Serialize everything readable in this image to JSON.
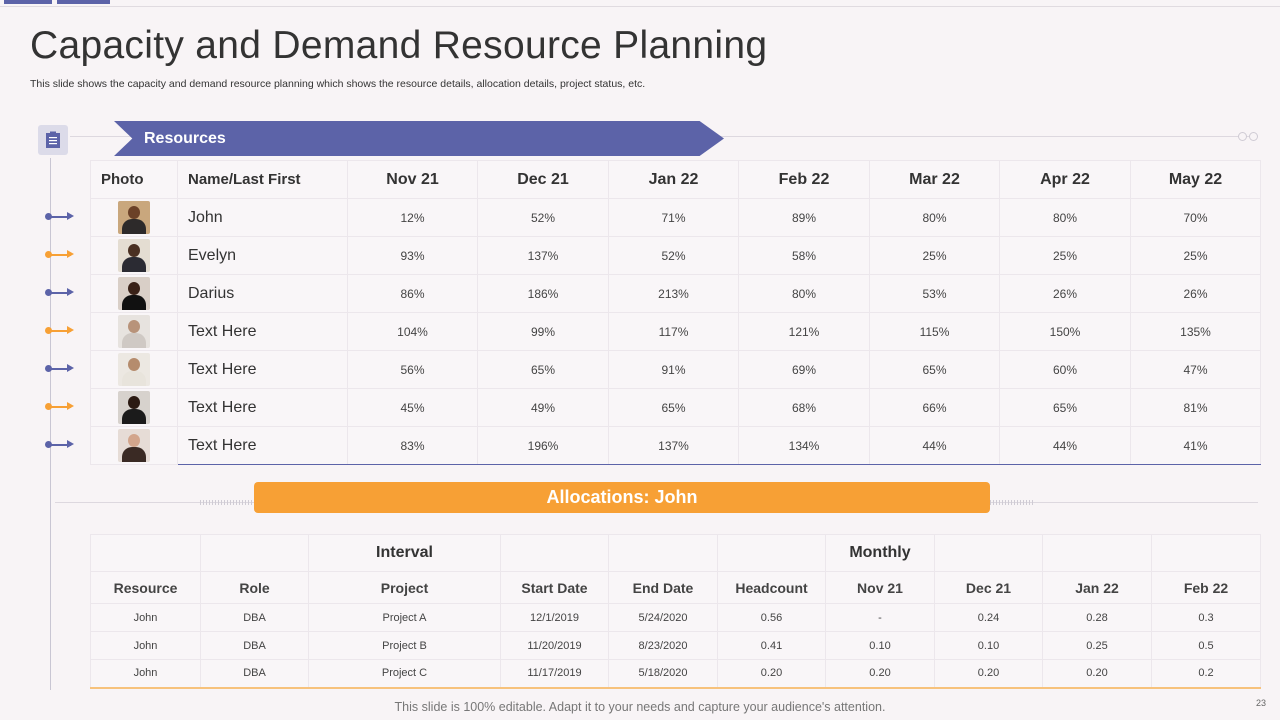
{
  "title": "Capacity and Demand Resource Planning",
  "subtitle": "This slide shows the capacity and demand resource planning which shows the resource details, allocation details, project status, etc.",
  "resources": {
    "banner": "Resources",
    "headers": {
      "photo": "Photo",
      "name": "Name/Last First",
      "months": [
        "Nov 21",
        "Dec 21",
        "Jan 22",
        "Feb 22",
        "Mar 22",
        "Apr 22",
        "May 22"
      ]
    },
    "rows": [
      {
        "name": "John",
        "values": [
          "12%",
          "52%",
          "71%",
          "89%",
          "80%",
          "80%",
          "70%"
        ]
      },
      {
        "name": "Evelyn",
        "values": [
          "93%",
          "137%",
          "52%",
          "58%",
          "25%",
          "25%",
          "25%"
        ]
      },
      {
        "name": "Darius",
        "values": [
          "86%",
          "186%",
          "213%",
          "80%",
          "53%",
          "26%",
          "26%"
        ]
      },
      {
        "name": "Text Here",
        "values": [
          "104%",
          "99%",
          "117%",
          "121%",
          "115%",
          "150%",
          "135%"
        ]
      },
      {
        "name": "Text Here",
        "values": [
          "56%",
          "65%",
          "91%",
          "69%",
          "65%",
          "60%",
          "47%"
        ]
      },
      {
        "name": "Text Here",
        "values": [
          "45%",
          "49%",
          "65%",
          "68%",
          "66%",
          "65%",
          "81%"
        ]
      },
      {
        "name": "Text Here",
        "values": [
          "83%",
          "196%",
          "137%",
          "134%",
          "44%",
          "44%",
          "41%"
        ]
      }
    ]
  },
  "allocations": {
    "banner": "Allocations: John",
    "group_labels": {
      "interval": "Interval",
      "monthly": "Monthly"
    },
    "headers": [
      "Resource",
      "Role",
      "Project",
      "Start Date",
      "End Date",
      "Headcount",
      "Nov 21",
      "Dec 21",
      "Jan 22",
      "Feb 22"
    ],
    "rows": [
      [
        "John",
        "DBA",
        "Project A",
        "12/1/2019",
        "5/24/2020",
        "0.56",
        "-",
        "0.24",
        "0.28",
        "0.3"
      ],
      [
        "John",
        "DBA",
        "Project B",
        "11/20/2019",
        "8/23/2020",
        "0.41",
        "0.10",
        "0.10",
        "0.25",
        "0.5"
      ],
      [
        "John",
        "DBA",
        "Project C",
        "11/17/2019",
        "5/18/2020",
        "0.20",
        "0.20",
        "0.20",
        "0.20",
        "0.2"
      ]
    ]
  },
  "footer": "This slide is 100% editable. Adapt it to your needs and capture your audience's attention.",
  "page_number": "23",
  "colors": {
    "accent_purple": "#5c63a8",
    "accent_orange": "#f7a035"
  }
}
